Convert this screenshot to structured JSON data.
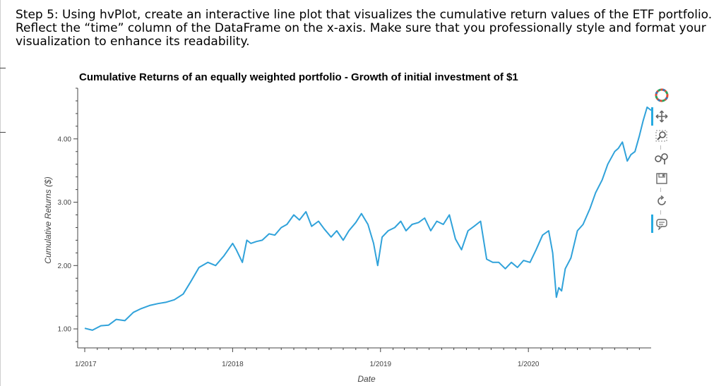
{
  "step_heading": "Step 5: Using hvPlot, create an interactive line plot that visualizes the cumulative return values of the ETF portfolio. Reflect the “time” column of the DataFrame on the x-axis. Make sure that you professionally style and format your visualization to enhance its readability.",
  "chart_data": {
    "type": "line",
    "title": "Cumulative Returns of an equally weighted portfolio - Growth of initial investment of $1",
    "xlabel": "Date",
    "ylabel": "Cumulative Returns ($)",
    "x_tick_labels": [
      "1/2017",
      "1/2018",
      "1/2019",
      "1/2020"
    ],
    "y_tick_labels": [
      "1.00",
      "2.00",
      "3.00",
      "4.00"
    ],
    "y_ticks": [
      1.0,
      2.0,
      3.0,
      4.0
    ],
    "ylim": [
      0.7,
      4.8
    ],
    "xlim": [
      "2017-01-01",
      "2020-10-30"
    ],
    "grid": false,
    "line_color": "#30a2da",
    "series": [
      {
        "x": [
          "2017-01-01",
          "2017-01-20",
          "2017-02-10",
          "2017-03-01",
          "2017-03-20",
          "2017-04-10",
          "2017-05-01",
          "2017-05-20",
          "2017-06-10",
          "2017-07-01",
          "2017-07-20",
          "2017-08-10",
          "2017-09-01",
          "2017-09-20",
          "2017-10-10",
          "2017-11-01",
          "2017-11-20",
          "2017-12-10",
          "2018-01-01",
          "2018-01-10",
          "2018-01-25",
          "2018-02-05",
          "2018-02-15",
          "2018-03-01",
          "2018-03-15",
          "2018-04-01",
          "2018-04-15",
          "2018-05-01",
          "2018-05-15",
          "2018-06-01",
          "2018-06-15",
          "2018-07-01",
          "2018-07-15",
          "2018-08-01",
          "2018-08-15",
          "2018-09-01",
          "2018-09-15",
          "2018-10-01",
          "2018-10-15",
          "2018-11-01",
          "2018-11-15",
          "2018-12-01",
          "2018-12-15",
          "2018-12-25",
          "2019-01-05",
          "2019-01-20",
          "2019-02-05",
          "2019-02-20",
          "2019-03-05",
          "2019-03-20",
          "2019-04-05",
          "2019-04-20",
          "2019-05-05",
          "2019-05-20",
          "2019-06-05",
          "2019-06-20",
          "2019-07-05",
          "2019-07-20",
          "2019-08-05",
          "2019-08-20",
          "2019-09-05",
          "2019-09-20",
          "2019-10-05",
          "2019-10-20",
          "2019-11-05",
          "2019-11-20",
          "2019-12-05",
          "2019-12-20",
          "2020-01-05",
          "2020-01-20",
          "2020-02-05",
          "2020-02-20",
          "2020-03-01",
          "2020-03-10",
          "2020-03-16",
          "2020-03-23",
          "2020-04-01",
          "2020-04-15",
          "2020-05-01",
          "2020-05-15",
          "2020-06-01",
          "2020-06-15",
          "2020-07-01",
          "2020-07-15",
          "2020-08-01",
          "2020-08-10",
          "2020-08-20",
          "2020-09-01",
          "2020-09-10",
          "2020-09-20",
          "2020-10-01",
          "2020-10-10",
          "2020-10-20",
          "2020-10-30"
        ],
        "y": [
          1.01,
          0.98,
          1.05,
          1.06,
          1.15,
          1.13,
          1.26,
          1.32,
          1.37,
          1.4,
          1.42,
          1.46,
          1.55,
          1.75,
          1.97,
          2.05,
          2.0,
          2.15,
          2.35,
          2.25,
          2.05,
          2.4,
          2.35,
          2.38,
          2.4,
          2.5,
          2.48,
          2.6,
          2.65,
          2.8,
          2.72,
          2.85,
          2.62,
          2.7,
          2.58,
          2.45,
          2.55,
          2.4,
          2.55,
          2.68,
          2.82,
          2.65,
          2.35,
          2.0,
          2.45,
          2.55,
          2.6,
          2.7,
          2.55,
          2.65,
          2.68,
          2.75,
          2.55,
          2.7,
          2.65,
          2.8,
          2.42,
          2.25,
          2.55,
          2.62,
          2.7,
          2.1,
          2.05,
          2.05,
          1.95,
          2.05,
          1.97,
          2.08,
          2.05,
          2.25,
          2.48,
          2.55,
          2.2,
          1.5,
          1.65,
          1.6,
          1.95,
          2.12,
          2.55,
          2.65,
          2.9,
          3.15,
          3.35,
          3.6,
          3.8,
          3.85,
          3.95,
          3.65,
          3.75,
          3.8,
          4.05,
          4.28,
          4.5,
          4.45
        ]
      }
    ]
  },
  "toolbar": {
    "icons": [
      "bokeh-logo-icon",
      "pan-icon",
      "box-zoom-icon",
      "wheel-zoom-icon",
      "save-icon",
      "reset-icon",
      "hover-icon"
    ],
    "active_tool": "pan",
    "accent_color": "#26aae1"
  }
}
